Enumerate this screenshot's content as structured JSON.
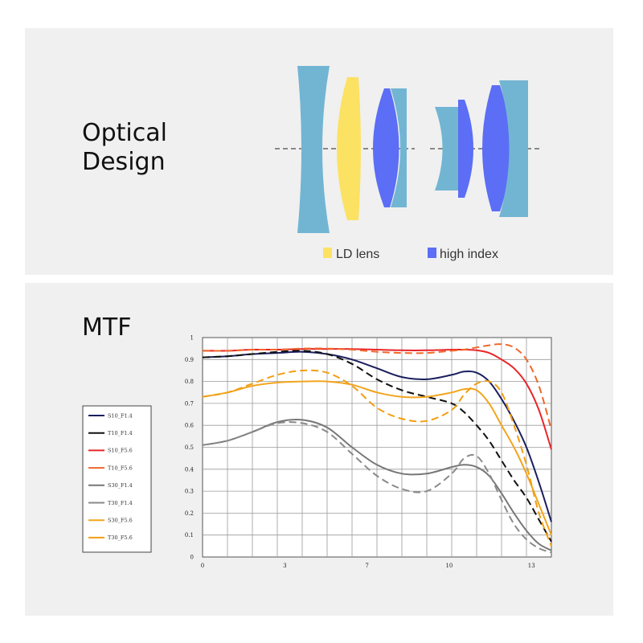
{
  "optical": {
    "title_line1": "Optical",
    "title_line2": "Design",
    "legend": [
      {
        "label": "LD lens",
        "color": "#fce263"
      },
      {
        "label": "high index",
        "color": "#5b6ef5"
      }
    ],
    "colors": {
      "standard_element": "#72b5d3",
      "ld": "#fce263",
      "high_index": "#5b6ef5"
    }
  },
  "mtf": {
    "title": "MTF"
  },
  "chart_data": {
    "type": "line",
    "title": "",
    "xlabel": "",
    "ylabel": "",
    "xlim": [
      0,
      14
    ],
    "ylim": [
      0,
      1
    ],
    "x_ticks": [
      "0",
      "3",
      "7",
      "10",
      "13"
    ],
    "x_tick_values": [
      0,
      3.3,
      6.6,
      9.9,
      13.2
    ],
    "y_ticks": [
      "0",
      "0.1",
      "0.2",
      "0.3",
      "0.4",
      "0.5",
      "0.6",
      "0.7",
      "0.8",
      "0.9",
      "1"
    ],
    "grid": true,
    "legend_position": "left",
    "series": [
      {
        "name": "S10_F1.4",
        "color": "#1a1f5e",
        "dash": false,
        "x": [
          0,
          1,
          2,
          3,
          4,
          5,
          6,
          7,
          8,
          9,
          10,
          10.5,
          11,
          11.5,
          12,
          12.5,
          13,
          13.5,
          14
        ],
        "y": [
          0.91,
          0.915,
          0.925,
          0.93,
          0.935,
          0.925,
          0.9,
          0.86,
          0.82,
          0.81,
          0.83,
          0.845,
          0.84,
          0.8,
          0.72,
          0.62,
          0.5,
          0.34,
          0.16
        ]
      },
      {
        "name": "T10_F1.4",
        "color": "#111111",
        "dash": true,
        "x": [
          0,
          1,
          2,
          3,
          4,
          5,
          6,
          7,
          8,
          9,
          10,
          10.5,
          11,
          11.5,
          12,
          12.5,
          13,
          13.5,
          14
        ],
        "y": [
          0.91,
          0.915,
          0.925,
          0.935,
          0.94,
          0.925,
          0.88,
          0.81,
          0.76,
          0.73,
          0.7,
          0.66,
          0.6,
          0.53,
          0.44,
          0.35,
          0.27,
          0.17,
          0.07
        ]
      },
      {
        "name": "S10_F5.6",
        "color": "#e8262a",
        "dash": false,
        "x": [
          0,
          1,
          2,
          3,
          4,
          5,
          6,
          7,
          8,
          9,
          10,
          10.5,
          11,
          11.5,
          12,
          12.5,
          13,
          13.5,
          14
        ],
        "y": [
          0.94,
          0.94,
          0.945,
          0.945,
          0.948,
          0.948,
          0.948,
          0.945,
          0.942,
          0.942,
          0.945,
          0.945,
          0.942,
          0.93,
          0.9,
          0.86,
          0.79,
          0.67,
          0.49
        ]
      },
      {
        "name": "T10_F5.6",
        "color": "#f0672a",
        "dash": true,
        "x": [
          0,
          1,
          2,
          3,
          4,
          5,
          6,
          7,
          8,
          9,
          10,
          10.5,
          11,
          11.5,
          12,
          12.5,
          13,
          13.5,
          14
        ],
        "y": [
          0.94,
          0.94,
          0.945,
          0.945,
          0.95,
          0.95,
          0.945,
          0.935,
          0.93,
          0.93,
          0.94,
          0.945,
          0.955,
          0.965,
          0.97,
          0.955,
          0.9,
          0.78,
          0.58
        ]
      },
      {
        "name": "S30_F1.4",
        "color": "#777777",
        "dash": false,
        "x": [
          0,
          1,
          2,
          3,
          4,
          5,
          6,
          7,
          8,
          9,
          10,
          10.5,
          11,
          11.5,
          12,
          12.5,
          13,
          13.5,
          14
        ],
        "y": [
          0.51,
          0.53,
          0.57,
          0.615,
          0.625,
          0.59,
          0.5,
          0.42,
          0.38,
          0.38,
          0.41,
          0.42,
          0.41,
          0.37,
          0.29,
          0.2,
          0.12,
          0.06,
          0.03
        ]
      },
      {
        "name": "T30_F1.4",
        "color": "#8a8a8a",
        "dash": true,
        "x": [
          0,
          1,
          2,
          3,
          4,
          5,
          6,
          7,
          8,
          9,
          10,
          10.5,
          11,
          11.5,
          12,
          12.5,
          13,
          13.5,
          14
        ],
        "y": [
          0.51,
          0.53,
          0.57,
          0.61,
          0.61,
          0.57,
          0.47,
          0.37,
          0.31,
          0.3,
          0.38,
          0.45,
          0.46,
          0.38,
          0.26,
          0.15,
          0.08,
          0.04,
          0.02
        ]
      },
      {
        "name": "S30_F5.6",
        "color": "#f2a51e",
        "dash": false,
        "x": [
          0,
          1,
          2,
          3,
          4,
          5,
          6,
          7,
          8,
          9,
          10,
          10.5,
          11,
          11.5,
          12,
          12.5,
          13,
          13.5,
          14
        ],
        "y": [
          0.73,
          0.75,
          0.78,
          0.795,
          0.8,
          0.8,
          0.785,
          0.75,
          0.73,
          0.73,
          0.75,
          0.765,
          0.76,
          0.7,
          0.6,
          0.5,
          0.38,
          0.24,
          0.1
        ]
      },
      {
        "name": "T30_F5.6",
        "color": "#f29e12",
        "dash": true,
        "x": [
          0,
          1,
          2,
          3,
          4,
          5,
          6,
          7,
          8,
          9,
          10,
          10.5,
          11,
          11.5,
          12,
          12.5,
          13,
          13.5,
          14
        ],
        "y": [
          0.73,
          0.75,
          0.79,
          0.83,
          0.85,
          0.84,
          0.78,
          0.68,
          0.63,
          0.62,
          0.67,
          0.74,
          0.79,
          0.8,
          0.75,
          0.6,
          0.42,
          0.2,
          0.05
        ]
      }
    ]
  }
}
